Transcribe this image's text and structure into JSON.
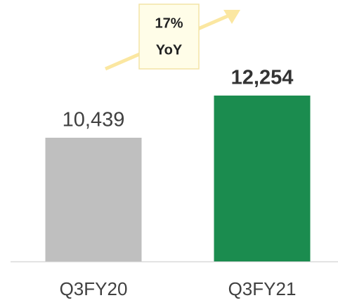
{
  "chart_data": {
    "type": "bar",
    "categories": [
      "Q3FY20",
      "Q3FY21"
    ],
    "values": [
      10439,
      12254
    ],
    "value_labels": [
      "10,439",
      "12,254"
    ],
    "colors": [
      "#bfbfbf",
      "#1b8c4f"
    ],
    "annotation": [
      "17%",
      "YoY"
    ],
    "ylim": [
      5115,
      16367
    ]
  }
}
